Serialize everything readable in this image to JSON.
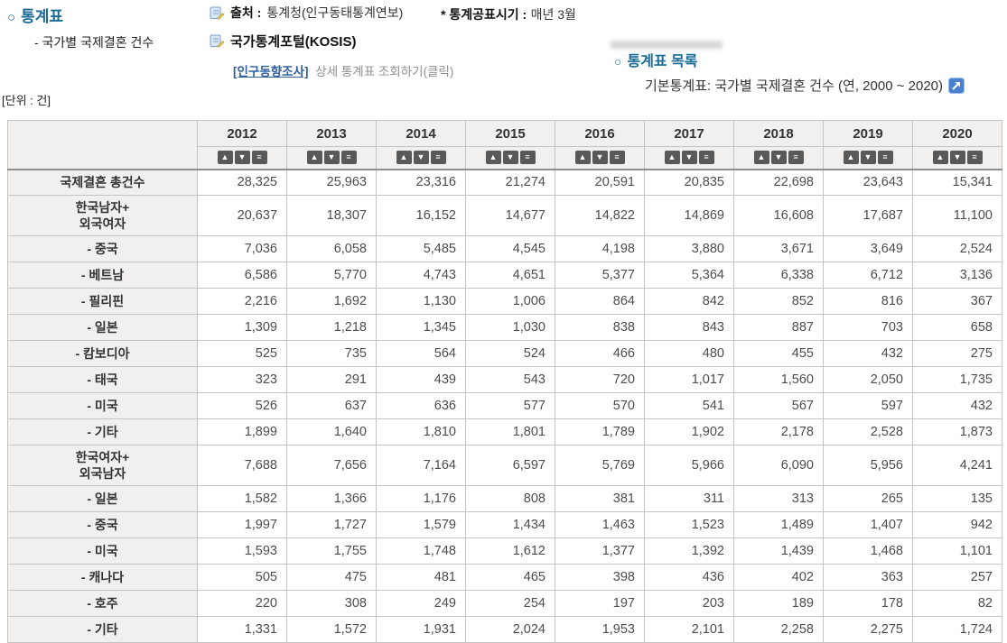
{
  "page": {
    "bullet": "○",
    "section_title": "통계표",
    "section_subtitle": "- 국가별 국제결혼 건수",
    "source_label": "출처 :",
    "source_value": "통계청(인구동태통계연보)",
    "publish_label": "* 통계공표시기 :",
    "publish_value": "매년 3월",
    "kosis_label": "국가통계포털(KOSIS)",
    "survey_link": "[인구동향조사]",
    "survey_link_desc": "상세 통계표 조회하기(클릭)",
    "list_title": "통계표 목록",
    "list_item": "기본통계표: 국가별 국제결혼 건수 (연, 2000 ~ 2020)",
    "unit_label": "[단위 : 건]"
  },
  "colors": {
    "accent_blue": "#1a6b96",
    "link_blue": "#2e5fa3",
    "header_bg": "#f1f0ef",
    "border_grey": "#c6c4c2",
    "sort_button_grey": "#595959",
    "external_icon_blue": "#4a80d0"
  },
  "table": {
    "years": [
      "2012",
      "2013",
      "2014",
      "2015",
      "2016",
      "2017",
      "2018",
      "2019",
      "2020"
    ],
    "sort_icons": {
      "asc": "▲",
      "desc": "▼",
      "list": "≡"
    },
    "rows": [
      {
        "label": "국제결혼 총건수",
        "values": [
          "28,325",
          "25,963",
          "23,316",
          "21,274",
          "20,591",
          "20,835",
          "22,698",
          "23,643",
          "15,341"
        ]
      },
      {
        "label": "한국남자+\n외국여자",
        "values": [
          "20,637",
          "18,307",
          "16,152",
          "14,677",
          "14,822",
          "14,869",
          "16,608",
          "17,687",
          "11,100"
        ]
      },
      {
        "label": "- 중국",
        "values": [
          "7,036",
          "6,058",
          "5,485",
          "4,545",
          "4,198",
          "3,880",
          "3,671",
          "3,649",
          "2,524"
        ]
      },
      {
        "label": "- 베트남",
        "values": [
          "6,586",
          "5,770",
          "4,743",
          "4,651",
          "5,377",
          "5,364",
          "6,338",
          "6,712",
          "3,136"
        ]
      },
      {
        "label": "- 필리핀",
        "values": [
          "2,216",
          "1,692",
          "1,130",
          "1,006",
          "864",
          "842",
          "852",
          "816",
          "367"
        ]
      },
      {
        "label": "- 일본",
        "values": [
          "1,309",
          "1,218",
          "1,345",
          "1,030",
          "838",
          "843",
          "887",
          "703",
          "658"
        ]
      },
      {
        "label": "- 캄보디아",
        "values": [
          "525",
          "735",
          "564",
          "524",
          "466",
          "480",
          "455",
          "432",
          "275"
        ]
      },
      {
        "label": "- 태국",
        "values": [
          "323",
          "291",
          "439",
          "543",
          "720",
          "1,017",
          "1,560",
          "2,050",
          "1,735"
        ]
      },
      {
        "label": "- 미국",
        "values": [
          "526",
          "637",
          "636",
          "577",
          "570",
          "541",
          "567",
          "597",
          "432"
        ]
      },
      {
        "label": "- 기타",
        "values": [
          "1,899",
          "1,640",
          "1,810",
          "1,801",
          "1,789",
          "1,902",
          "2,178",
          "2,528",
          "1,873"
        ]
      },
      {
        "label": "한국여자+\n외국남자",
        "values": [
          "7,688",
          "7,656",
          "7,164",
          "6,597",
          "5,769",
          "5,966",
          "6,090",
          "5,956",
          "4,241"
        ]
      },
      {
        "label": "- 일본",
        "values": [
          "1,582",
          "1,366",
          "1,176",
          "808",
          "381",
          "311",
          "313",
          "265",
          "135"
        ]
      },
      {
        "label": "- 중국",
        "values": [
          "1,997",
          "1,727",
          "1,579",
          "1,434",
          "1,463",
          "1,523",
          "1,489",
          "1,407",
          "942"
        ]
      },
      {
        "label": "- 미국",
        "values": [
          "1,593",
          "1,755",
          "1,748",
          "1,612",
          "1,377",
          "1,392",
          "1,439",
          "1,468",
          "1,101"
        ]
      },
      {
        "label": "- 캐나다",
        "values": [
          "505",
          "475",
          "481",
          "465",
          "398",
          "436",
          "402",
          "363",
          "257"
        ]
      },
      {
        "label": "- 호주",
        "values": [
          "220",
          "308",
          "249",
          "254",
          "197",
          "203",
          "189",
          "178",
          "82"
        ]
      },
      {
        "label": "- 기타",
        "values": [
          "1,331",
          "1,572",
          "1,931",
          "2,024",
          "1,953",
          "2,101",
          "2,258",
          "2,275",
          "1,724"
        ]
      }
    ]
  }
}
